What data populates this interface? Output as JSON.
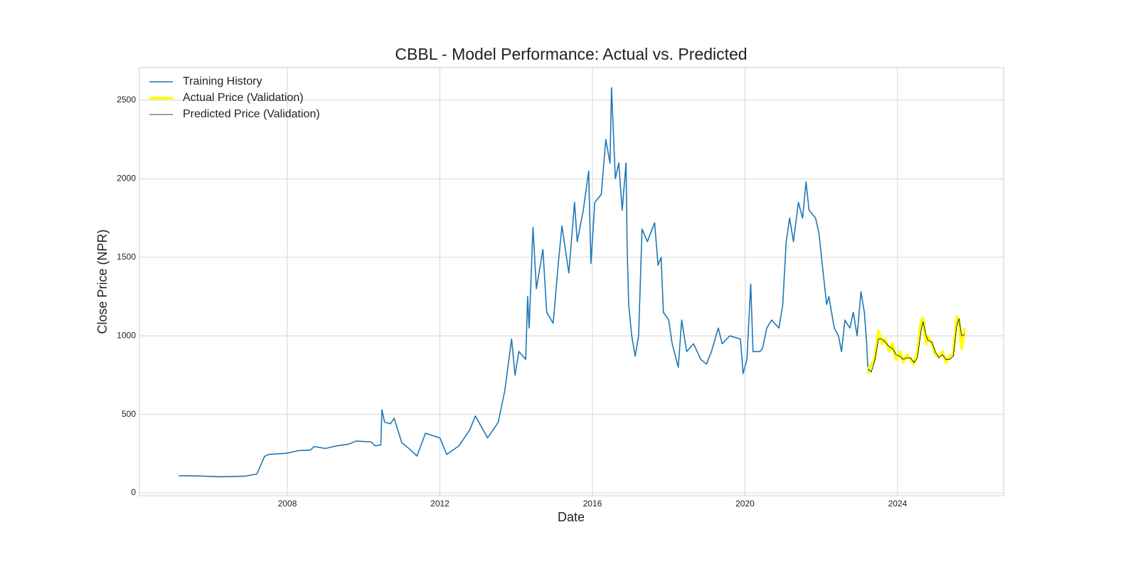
{
  "chart_data": {
    "type": "line",
    "title": "CBBL - Model Performance: Actual vs. Predicted",
    "xlabel": "Date",
    "ylabel": "Close Price (NPR)",
    "xlim": [
      2004.12,
      2026.78
    ],
    "xticks": [
      2008,
      2012,
      2016,
      2020,
      2024
    ],
    "ylim": [
      -18,
      2708
    ],
    "yticks": [
      0,
      500,
      1000,
      1500,
      2000,
      2500
    ],
    "grid": true,
    "legend": "upper left",
    "series": [
      {
        "name": "Training History",
        "color": "#1f77b4",
        "linewidth": 1.6,
        "x": [
          2005.15,
          2005.65,
          2006.25,
          2006.9,
          2007.2,
          2007.4,
          2007.5,
          2008.0,
          2008.3,
          2008.6,
          2008.7,
          2009.0,
          2009.3,
          2009.6,
          2009.8,
          2010.2,
          2010.3,
          2010.45,
          2010.48,
          2010.55,
          2010.7,
          2010.8,
          2011.0,
          2011.2,
          2011.4,
          2011.62,
          2012.0,
          2012.18,
          2012.5,
          2012.78,
          2012.93,
          2013.25,
          2013.53,
          2013.7,
          2013.88,
          2013.97,
          2014.07,
          2014.25,
          2014.3,
          2014.34,
          2014.44,
          2014.53,
          2014.7,
          2014.8,
          2014.97,
          2015.1,
          2015.2,
          2015.38,
          2015.53,
          2015.6,
          2015.76,
          2015.9,
          2015.96,
          2016.06,
          2016.23,
          2016.35,
          2016.46,
          2016.5,
          2016.6,
          2016.69,
          2016.78,
          2016.88,
          2016.91,
          2016.95,
          2017.03,
          2017.12,
          2017.21,
          2017.3,
          2017.44,
          2017.63,
          2017.72,
          2017.8,
          2017.86,
          2018.0,
          2018.09,
          2018.25,
          2018.34,
          2018.47,
          2018.65,
          2018.84,
          2018.99,
          2019.12,
          2019.3,
          2019.4,
          2019.6,
          2019.88,
          2019.95,
          2020.05,
          2020.15,
          2020.21,
          2020.39,
          2020.46,
          2020.57,
          2020.7,
          2020.89,
          2020.99,
          2021.08,
          2021.17,
          2021.27,
          2021.4,
          2021.51,
          2021.6,
          2021.68,
          2021.85,
          2021.94,
          2022.05,
          2022.14,
          2022.2,
          2022.34,
          2022.45,
          2022.53,
          2022.62,
          2022.75,
          2022.84,
          2022.94,
          2023.04,
          2023.13,
          2023.19,
          2023.22
        ],
        "values": [
          109,
          108,
          103,
          107,
          120,
          232,
          245,
          253,
          270,
          272,
          295,
          283,
          300,
          310,
          330,
          325,
          300,
          305,
          530,
          450,
          440,
          475,
          320,
          280,
          235,
          380,
          350,
          245,
          300,
          400,
          490,
          350,
          450,
          650,
          980,
          750,
          900,
          850,
          1250,
          1050,
          1690,
          1300,
          1550,
          1150,
          1080,
          1450,
          1700,
          1400,
          1850,
          1600,
          1800,
          2050,
          1460,
          1850,
          1900,
          2250,
          2100,
          2580,
          2000,
          2100,
          1800,
          2100,
          1560,
          1200,
          1000,
          870,
          1000,
          1680,
          1600,
          1720,
          1450,
          1500,
          1150,
          1100,
          950,
          800,
          1100,
          900,
          950,
          850,
          820,
          900,
          1050,
          950,
          1000,
          980,
          760,
          850,
          1330,
          900,
          900,
          920,
          1050,
          1100,
          1050,
          1200,
          1600,
          1750,
          1600,
          1850,
          1750,
          1980,
          1800,
          1750,
          1650,
          1400,
          1200,
          1250,
          1050,
          1000,
          900,
          1100,
          1050,
          1150,
          1000,
          1280,
          1150,
          950,
          800
        ]
      },
      {
        "name": "Actual Price (Validation)",
        "color": "#ffff00",
        "linewidth": 4,
        "x": [
          2023.22,
          2023.31,
          2023.4,
          2023.5,
          2023.59,
          2023.68,
          2023.78,
          2023.87,
          2023.96,
          2024.06,
          2024.15,
          2024.24,
          2024.34,
          2024.43,
          2024.52,
          2024.62,
          2024.67,
          2024.75,
          2024.8,
          2024.9,
          2024.99,
          2025.08,
          2025.18,
          2025.27,
          2025.36,
          2025.46,
          2025.55,
          2025.61,
          2025.68,
          2025.76
        ],
        "values": [
          760,
          820,
          850,
          1030,
          950,
          980,
          900,
          950,
          850,
          900,
          830,
          880,
          850,
          820,
          900,
          1100,
          1110,
          950,
          1000,
          950,
          880,
          870,
          900,
          830,
          870,
          880,
          1120,
          1100,
          920,
          1050
        ]
      },
      {
        "name": "Predicted Price (Validation)",
        "color": "#000000",
        "linewidth": 0.8,
        "x": [
          2023.22,
          2023.31,
          2023.4,
          2023.5,
          2023.59,
          2023.68,
          2023.78,
          2023.87,
          2023.96,
          2024.06,
          2024.15,
          2024.24,
          2024.34,
          2024.43,
          2024.52,
          2024.62,
          2024.67,
          2024.75,
          2024.8,
          2024.9,
          2024.99,
          2025.08,
          2025.18,
          2025.27,
          2025.36,
          2025.46,
          2025.55,
          2025.61,
          2025.68,
          2025.76
        ],
        "values": [
          790,
          770,
          840,
          980,
          980,
          960,
          930,
          920,
          880,
          870,
          850,
          860,
          860,
          830,
          860,
          1040,
          1090,
          1000,
          970,
          960,
          900,
          860,
          880,
          850,
          850,
          870,
          1060,
          1110,
          1000,
          1010
        ]
      }
    ]
  }
}
